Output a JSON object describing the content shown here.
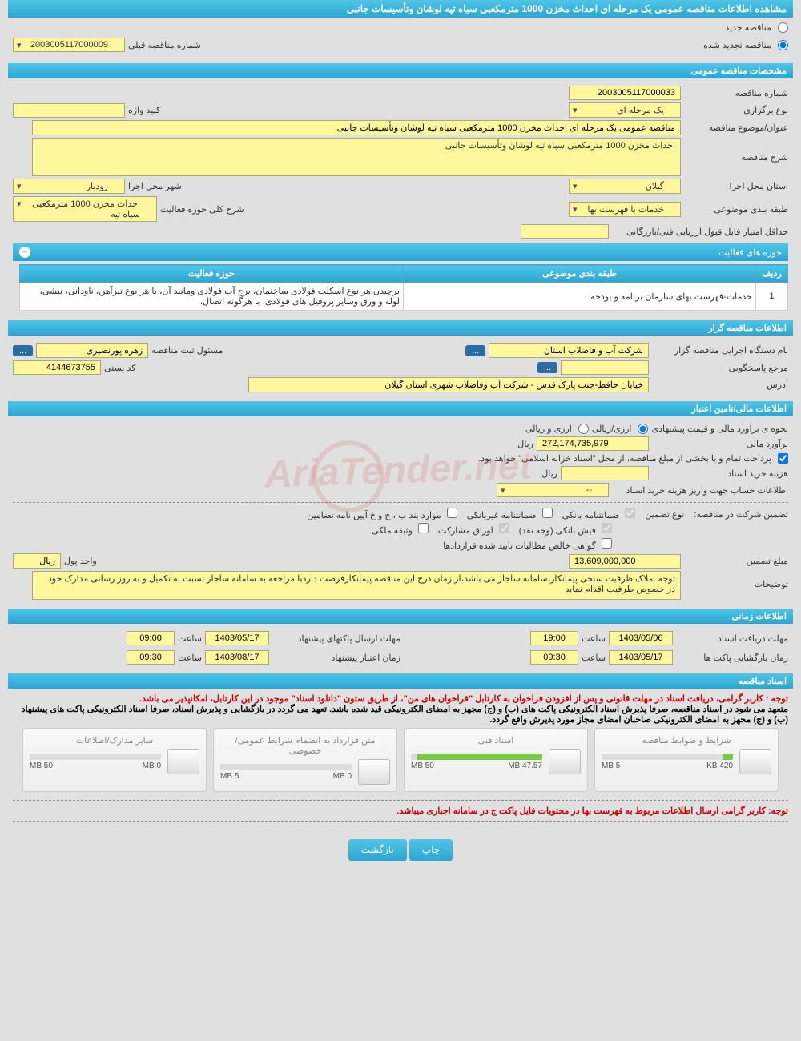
{
  "colors": {
    "header_gradient_start": "#4fc5e8",
    "header_gradient_end": "#2ca6d1",
    "field_bg": "#fef79c",
    "field_border": "#a8a87a",
    "body_bg": "#e0e0e0",
    "text": "#333333",
    "note_red": "#cc0000",
    "progress_fill": "#7ac943",
    "icon_btn": "#2b6ca3"
  },
  "page_title": "مشاهده اطلاعات مناقصه عمومی یک مرحله ای احداث مخزن 1000 مترمکعبی سیاه تپه لوشان وتأسیسات جانبی",
  "top_options": {
    "new_tender": "مناقصه جدید",
    "renewed_tender": "مناقصه تجدید شده",
    "selected": "renewed",
    "prev_number_label": "شماره مناقصه قبلی",
    "prev_number": "2003005117000009"
  },
  "sections": {
    "general": "مشخصات مناقصه عمومی",
    "organizer": "اطلاعات مناقصه گزار",
    "financial": "اطلاعات مالی/تامین اعتبار",
    "timing": "اطلاعات زمانی",
    "docs": "اسناد مناقصه"
  },
  "general": {
    "tender_number_label": "شماره مناقصه",
    "tender_number": "2003005117000033",
    "hold_type_label": "نوع برگزاری",
    "hold_type": "یک مرحله ای",
    "keyword_label": "کلید واژه",
    "keyword": "",
    "subject_label": "عنوان/موضوع مناقصه",
    "subject": "مناقصه عمومی یک مرحله ای احداث مخزن 1000 مترمکعبی  سیاه تپه لوشان وتأسیسات جانبی",
    "desc_label": "شرح مناقصه",
    "desc": "احداث مخزن 1000 مترمکعبی سیاه تپه  لوشان وتأسیسات جانبی",
    "province_label": "استان محل اجرا",
    "province": "گیلان",
    "city_label": "شهر محل اجرا",
    "city": "رودبار",
    "category_label": "طبقه بندی موضوعی",
    "category": "خدمات با فهرست بها",
    "activity_summary_label": "شرح کلی حوزه فعالیت",
    "activity_summary": "احداث مخزن 1000 مترمکعبی  سیاه تپه",
    "min_score_label": "حداقل امتیاز قابل قبول ارزیابی فنی/بازرگانی",
    "min_score": ""
  },
  "activities_table": {
    "title": "حوزه های فعالیت",
    "columns": [
      "ردیف",
      "طبقه بندی موضوعی",
      "حوزه فعالیت"
    ],
    "rows": [
      [
        "1",
        "خدمات-فهرست بهای سازمان برنامه و بودجه",
        "برچیدن هر نوع اسکلت فولادی ساختمان، برج آب فولادی ومانند آن، با هر نوع تیرآهن، ناودانی، نبشی، لوله و ورق وسایر پروفیل های فولادی، با هرگونه اتصال،"
      ]
    ]
  },
  "organizer": {
    "exec_label": "نام دستگاه اجرایی مناقصه گزار",
    "exec_name": "شرکت آب و فاضلاب استان",
    "reg_official_label": "مسئول ثبت مناقصه",
    "reg_official": "زهره پورنصیری",
    "response_ref_label": "مرجع پاسخگویی",
    "response_ref": "",
    "postal_label": "کد پستی",
    "postal": "4144673755",
    "address_label": "آدرس",
    "address": "خیابان حافظ-جنب پارک قدس - شرکت آب وفاضلاب شهری استان گیلان"
  },
  "financial": {
    "estimate_method_label": "نحوه ی برآورد مالی و قیمت پیشنهادی",
    "opt_currency_rial": "ارزی/ریالی",
    "opt_currency_and_rial": "ارزی و ریالی",
    "estimate_label": "برآورد مالی",
    "estimate_value": "272,174,735,979",
    "unit_rial": "ریال",
    "treasury_note": "پرداخت تمام و یا بخشی از مبلغ مناقصه، از محل \"اسناد خزانه اسلامی\" خواهد بود.",
    "doc_fee_label": "هزینه خرید اسناد",
    "doc_fee": "",
    "account_info_label": "اطلاعات حساب جهت واریز هزینه خرید اسناد",
    "account_info": "--",
    "guarantee_label": "تضمین شرکت در مناقصه:",
    "guarantee_type_label": "نوع تضمین",
    "guarantees": {
      "bank_guarantee": "ضمانتنامه بانکی",
      "nonbank_guarantee": "ضمانتنامه غیربانکی",
      "items_bcd": "موارد بند ب ، ج و خ آیین نامه تضامین",
      "bank_receipt": "فیش بانکی (وجه نقد)",
      "participation_bonds": "اوراق مشارکت",
      "property_deed": "وثیقه ملکی",
      "net_receivables": "گواهی خالص مطالبات تایید شده قراردادها"
    },
    "guarantee_amount_label": "مبلغ تضمین",
    "guarantee_amount": "13,609,000,000",
    "money_unit_label": "واحد پول",
    "money_unit": "ریال",
    "notes_label": "توضیحات",
    "notes": "توجه :ملاک ظرفیت سنجی پیمانکار،سامانه ساجار می باشد،از زمان درج این مناقصه پیمانکارفرصت داردبا مراجعه به سامانه ساجار نسبت به تکمیل و به روز رسانی مدارک خود در خصوص ظرفیت اقدام نماید"
  },
  "timing": {
    "doc_deadline_label": "مهلت دریافت اسناد",
    "doc_deadline_date": "1403/05/06",
    "doc_deadline_time": "19:00",
    "send_deadline_label": "مهلت ارسال پاکتهای پیشنهاد",
    "send_deadline_date": "1403/05/17",
    "send_deadline_time": "09:00",
    "opening_label": "زمان بازگشایی پاکت ها",
    "opening_date": "1403/05/17",
    "opening_time": "09:30",
    "validity_label": "زمان اعتبار پیشنهاد",
    "validity_date": "1403/08/17",
    "validity_time": "09:30",
    "time_label": "ساعت"
  },
  "docs": {
    "note1": "توجه : کاربر گرامی، دریافت اسناد در مهلت قانونی و پس از افزودن فراخوان به کارتابل \"فراخوان های من\"، از طریق ستون \"دانلود اسناد\" موجود در این کارتابل، امکانپذیر می باشد.",
    "note2": "متعهد می شود در اسناد مناقصه، صرفا پذیرش اسناد الکترونیکی پاکت های (ب) و (ج) مجهز به امضای الکترونیکی قید شده باشد. تعهد می گردد در بازگشایی و پذیرش اسناد، صرفا اسناد الکترونیکی پاکت های پیشنهاد (ب) و (ج) مجهز به امضای الکترونیکی صاحبان امضای مجاز مورد پذیرش واقع گردد.",
    "files": [
      {
        "title": "شرایط و ضوابط مناقصه",
        "used": "420 KB",
        "total": "5 MB",
        "pct": 8
      },
      {
        "title": "اسناد فنی",
        "used": "47.57 MB",
        "total": "50 MB",
        "pct": 95
      },
      {
        "title": "متن قرارداد به انضمام شرایط عمومی/خصوصی",
        "used": "0 MB",
        "total": "5 MB",
        "pct": 0
      },
      {
        "title": "سایر مدارک/اطلاعات",
        "used": "0 MB",
        "total": "50 MB",
        "pct": 0
      }
    ],
    "bottom_note": "توجه: کاربر گرامی ارسال اطلاعات مربوط به فهرست بها در محتویات فایل پاکت ج در سامانه اجباری میباشد."
  },
  "buttons": {
    "print": "چاپ",
    "back": "بازگشت"
  },
  "watermark_text": "AriaTender.net"
}
